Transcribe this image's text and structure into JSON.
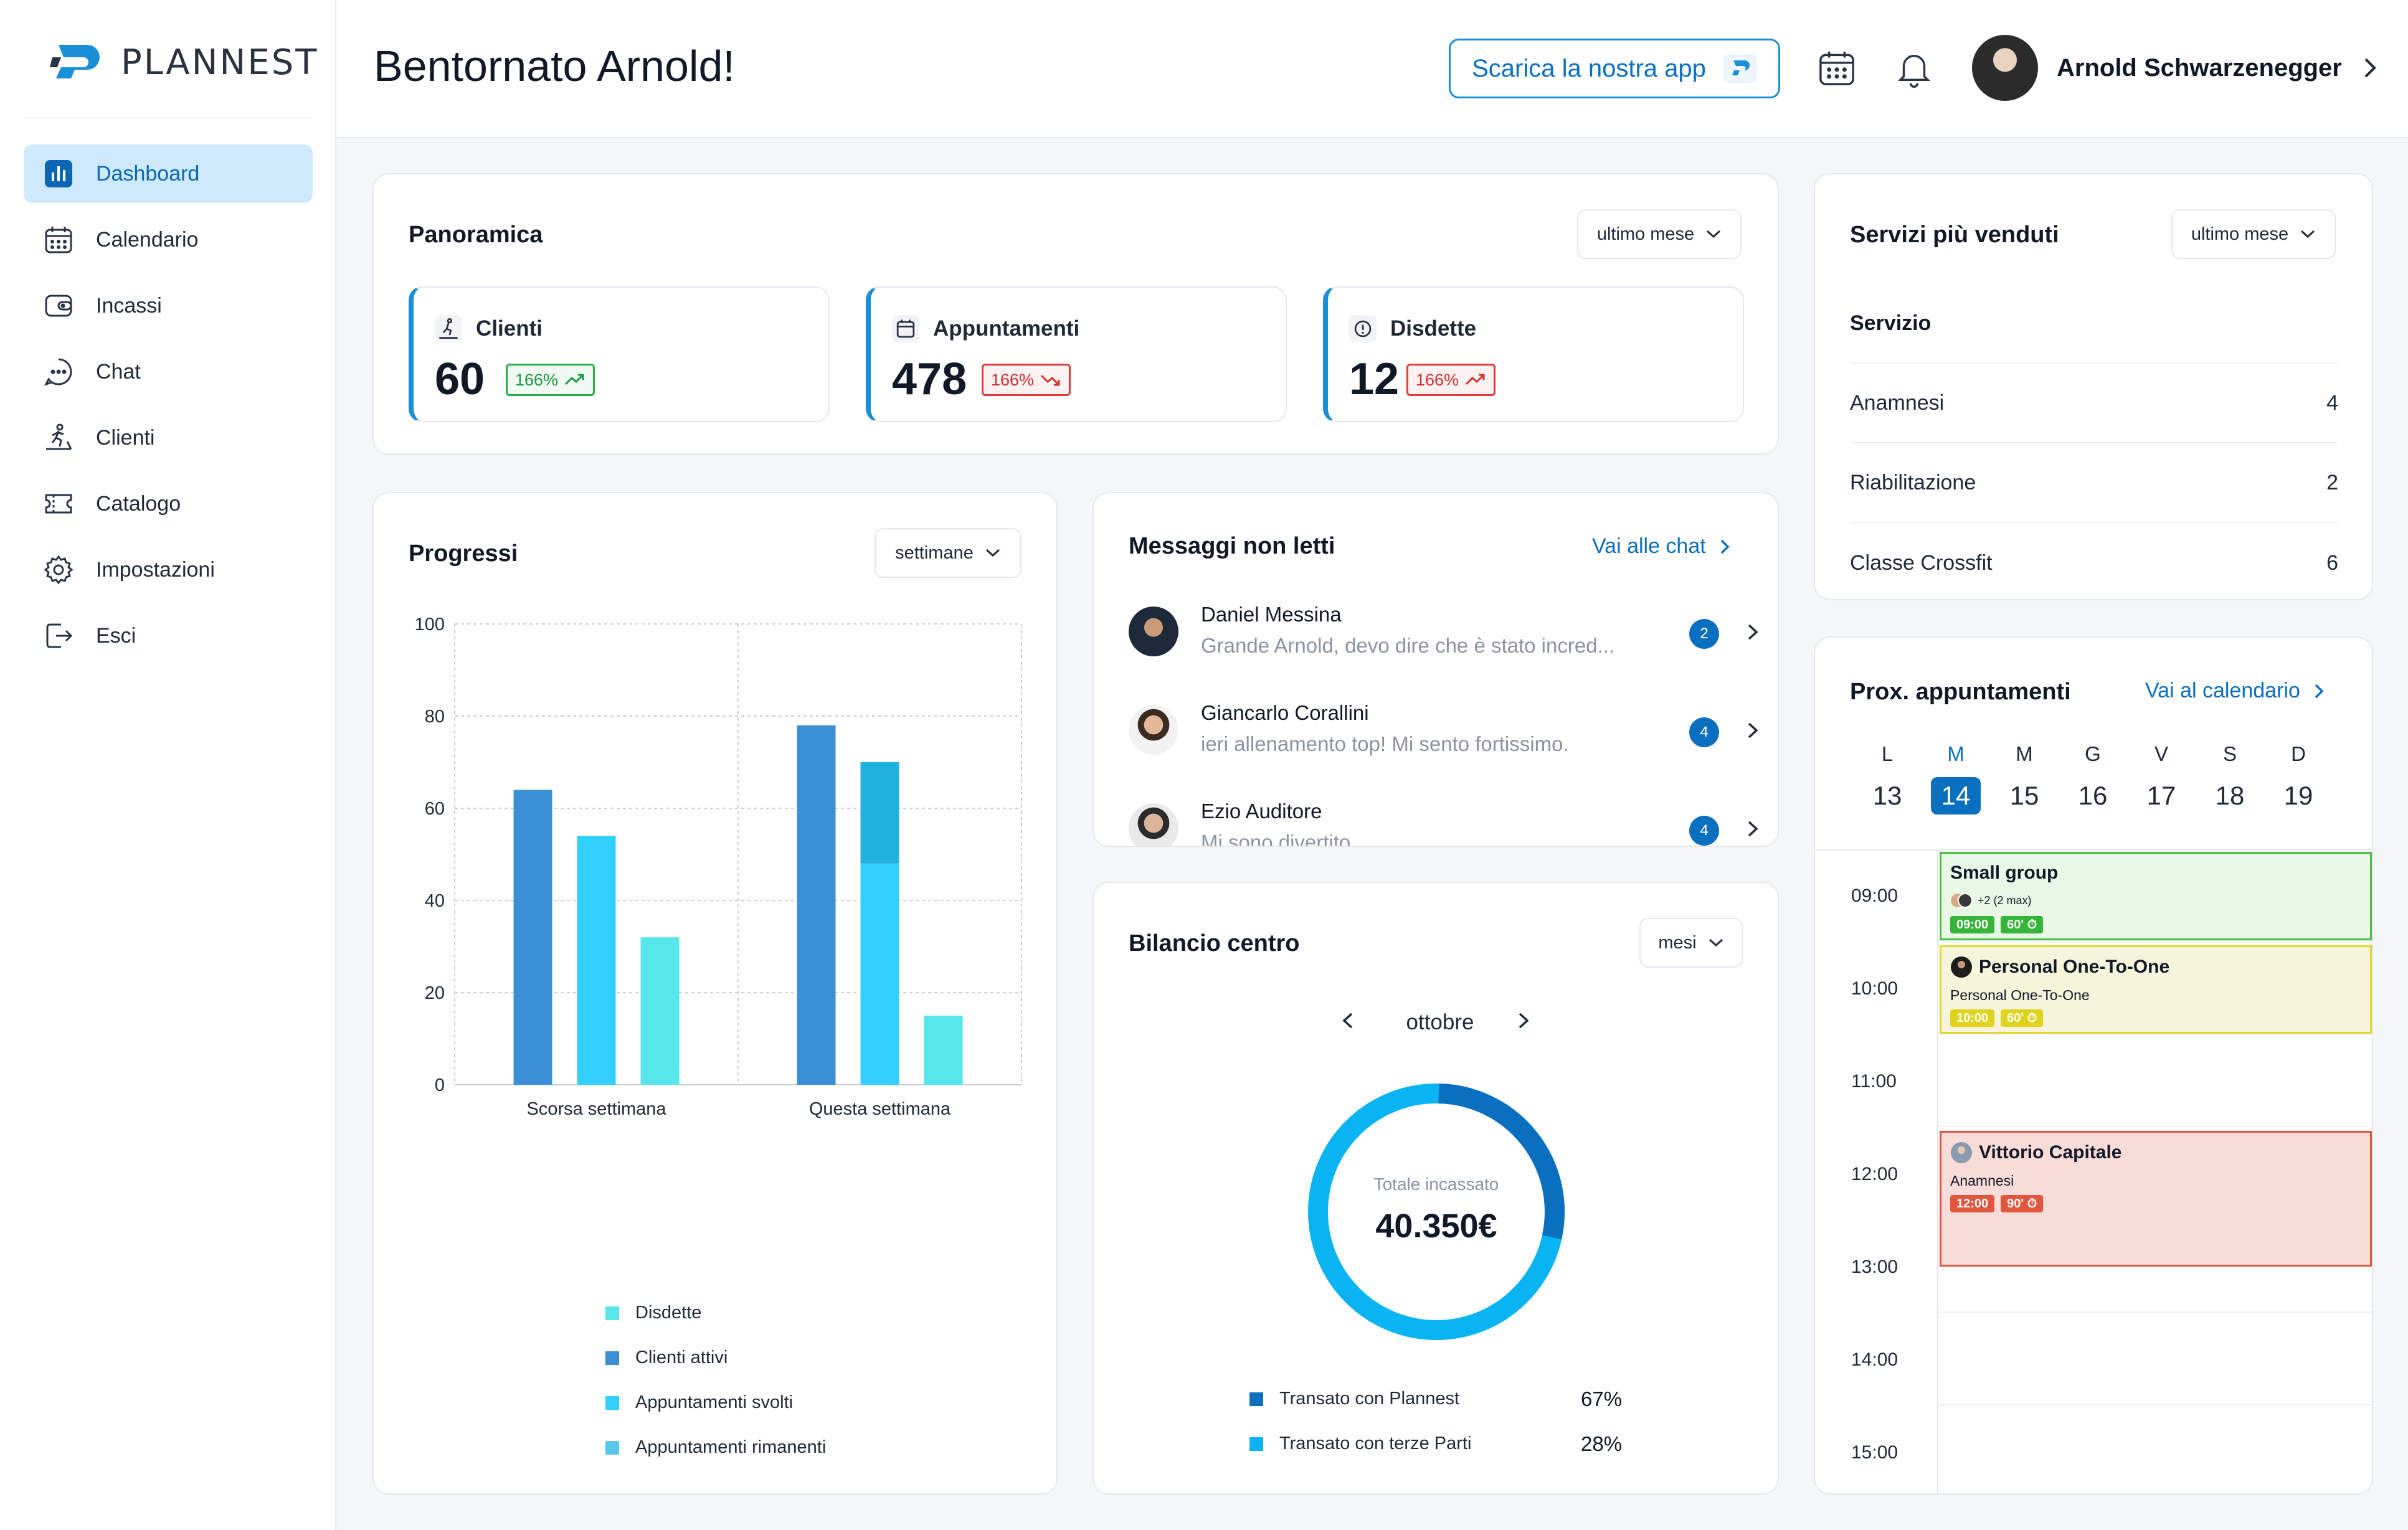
{
  "app": {
    "logo_text": "PLANNEST"
  },
  "sidebar": {
    "items": [
      {
        "label": "Dashboard",
        "icon": "dashboard-icon"
      },
      {
        "label": "Calendario",
        "icon": "calendar-icon"
      },
      {
        "label": "Incassi",
        "icon": "wallet-icon"
      },
      {
        "label": "Chat",
        "icon": "chat-icon"
      },
      {
        "label": "Clienti",
        "icon": "treadmill-icon"
      },
      {
        "label": "Catalogo",
        "icon": "ticket-icon"
      },
      {
        "label": "Impostazioni",
        "icon": "gear-icon"
      },
      {
        "label": "Esci",
        "icon": "logout-icon"
      }
    ]
  },
  "header": {
    "title": "Bentornato Arnold!",
    "app_button": "Scarica la nostra app",
    "user_name": "Arnold Schwarzenegger"
  },
  "overview": {
    "title": "Panoramica",
    "filter": "ultimo mese",
    "stats": [
      {
        "label": "Clienti",
        "value": "60",
        "change": "166%",
        "trend": "up"
      },
      {
        "label": "Appuntamenti",
        "value": "478",
        "change": "166%",
        "trend": "down"
      },
      {
        "label": "Disdette",
        "value": "12",
        "change": "166%",
        "trend": "up"
      }
    ]
  },
  "progress": {
    "title": "Progressi",
    "filter": "settimane"
  },
  "messages": {
    "title": "Messaggi non letti",
    "link": "Vai alle chat",
    "items": [
      {
        "name": "Daniel Messina",
        "text": "Grande Arnold, devo dire che è stato incred...",
        "count": "2"
      },
      {
        "name": "Giancarlo Corallini",
        "text": "ieri allenamento top! Mi sento fortissimo.",
        "count": "4"
      },
      {
        "name": "Ezio Auditore",
        "text": "Mi sono divertito",
        "count": "4"
      }
    ]
  },
  "balance": {
    "title": "Bilancio centro",
    "filter": "mesi",
    "month": "ottobre",
    "total_label": "Totale incassato",
    "total_value": "40.350€",
    "legend": [
      {
        "label": "Transato con Plannest",
        "value": "67%",
        "color": "#0b6fc0"
      },
      {
        "label": "Transato con terze Parti",
        "value": "28%",
        "color": "#0ab4f2"
      }
    ]
  },
  "services": {
    "title": "Servizi più venduti",
    "filter": "ultimo mese",
    "column": "Servizio",
    "rows": [
      {
        "name": "Anamnesi",
        "count": "4"
      },
      {
        "name": "Riabilitazione",
        "count": "2"
      },
      {
        "name": "Classe Crossfit",
        "count": "6"
      }
    ]
  },
  "appointments": {
    "title": "Prox. appuntamenti",
    "link": "Vai al calendario",
    "days": [
      {
        "letter": "L",
        "num": "13"
      },
      {
        "letter": "M",
        "num": "14",
        "selected": true
      },
      {
        "letter": "M",
        "num": "15"
      },
      {
        "letter": "G",
        "num": "16"
      },
      {
        "letter": "V",
        "num": "17"
      },
      {
        "letter": "S",
        "num": "18"
      },
      {
        "letter": "D",
        "num": "19"
      }
    ],
    "hours": [
      "09:00",
      "10:00",
      "11:00",
      "12:00",
      "13:00",
      "14:00",
      "15:00"
    ],
    "events": [
      {
        "title": "Small group",
        "sub": "+2 (2 max)",
        "time": "09:00",
        "duration": "60'",
        "color": "green"
      },
      {
        "title": "Personal One-To-One",
        "sub": "Personal One-To-One",
        "time": "10:00",
        "duration": "60'",
        "color": "yellow"
      },
      {
        "title": "Vittorio Capitale",
        "sub": "Anamnesi",
        "time": "12:00",
        "duration": "90'",
        "color": "red"
      }
    ]
  },
  "chart_data": {
    "type": "bar",
    "title": "Progressi",
    "categories": [
      "Scorsa settimana",
      "Questa settimana"
    ],
    "ylim": [
      0,
      100
    ],
    "yticks": [
      0,
      20,
      40,
      60,
      80,
      100
    ],
    "grid": true,
    "legend_position": "bottom",
    "series": [
      {
        "name": "Clienti attivi",
        "values": [
          64,
          78
        ],
        "color": "#3a8fd6"
      },
      {
        "name": "Appuntamenti svolti",
        "values": [
          54,
          48
        ],
        "color": "#32d0ff"
      },
      {
        "name": "Appuntamenti rimanenti",
        "values": [
          0,
          22
        ],
        "color": "#22b2e0",
        "stacked_on": "Appuntamenti svolti"
      },
      {
        "name": "Disdette",
        "values": [
          32,
          15
        ],
        "color": "#57e6ea"
      }
    ],
    "legend": [
      {
        "name": "Disdette",
        "color": "#57e6ea"
      },
      {
        "name": "Clienti attivi",
        "color": "#3a8fd6"
      },
      {
        "name": "Appuntamenti svolti",
        "color": "#32d0ff"
      },
      {
        "name": "Appuntamenti rimanenti",
        "color": "#57c8ea"
      }
    ]
  }
}
